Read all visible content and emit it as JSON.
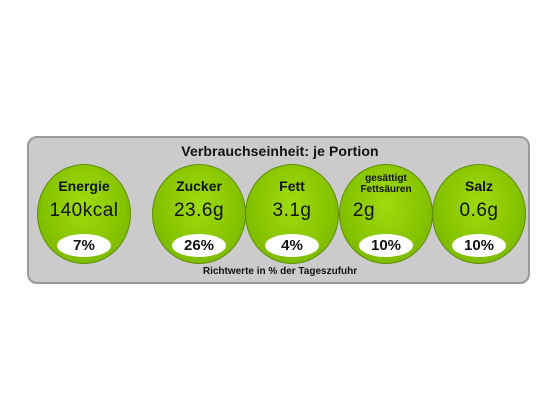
{
  "heading": "Verbrauchseinheit: je Portion",
  "footnote": "Richtwerte in % der Tageszufuhr",
  "nutrients": [
    {
      "label": "Energie",
      "amount": "140kcal",
      "percent": "7%"
    },
    {
      "label": "Zucker",
      "amount": "23.6g",
      "percent": "26%"
    },
    {
      "label": "Fett",
      "amount": "3.1g",
      "percent": "4%"
    },
    {
      "label_line1": "gesättigt",
      "label_line2": "Fettsäuren",
      "amount": "2g",
      "percent": "10%"
    },
    {
      "label": "Salz",
      "amount": "0.6g",
      "percent": "10%"
    }
  ],
  "colors": {
    "circle": "#86c300",
    "panel": "#cbcbcb",
    "border": "#9a9a9a"
  }
}
